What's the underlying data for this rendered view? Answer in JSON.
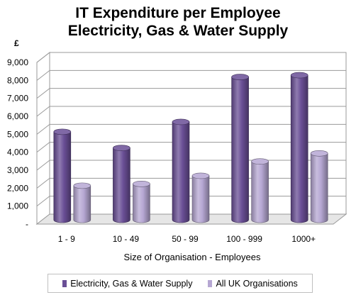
{
  "chart_data": {
    "type": "bar",
    "title_line1": "IT Expenditure per Employee",
    "title_line2": "Electricity, Gas & Water Supply",
    "unit_label": "£",
    "xlabel": "Size of Organisation - Employees",
    "categories": [
      "1 - 9",
      "10 - 49",
      "50 - 99",
      "100 - 999",
      "1000+"
    ],
    "ylim": [
      0,
      9000
    ],
    "yticks": [
      0,
      1000,
      2000,
      3000,
      4000,
      5000,
      6000,
      7000,
      8000,
      9000
    ],
    "ytick_labels": [
      "-",
      "1,000",
      "2,000",
      "3,000",
      "4,000",
      "5,000",
      "6,000",
      "7,000",
      "8,000",
      "9,000"
    ],
    "grid": true,
    "legend_position": "bottom",
    "series": [
      {
        "name": "Electricity, Gas & Water Supply",
        "values": [
          4900,
          4000,
          5450,
          7950,
          8050
        ],
        "color": "#6a4f96"
      },
      {
        "name": "All UK Organisations",
        "values": [
          1900,
          2000,
          2450,
          3250,
          3700
        ],
        "color": "#b6a7d3"
      }
    ]
  }
}
